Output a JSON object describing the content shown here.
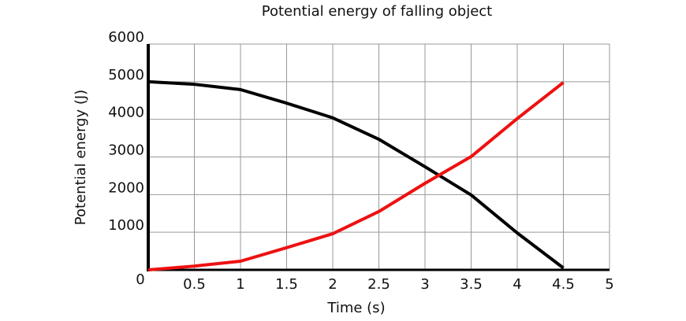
{
  "chart_data": {
    "type": "line",
    "title": "Potential energy of falling object",
    "x_label": "Time (s)",
    "y_label": "Potential energy (J)",
    "x": [
      0,
      0.5,
      1,
      1.5,
      2,
      2.5,
      3,
      3.5,
      4,
      4.5
    ],
    "series": [
      {
        "color": "#000000",
        "values": [
          5000,
          4930,
          4790,
          4430,
          4040,
          3470,
          2740,
          1990,
          980,
          50
        ]
      },
      {
        "color": "#ee1111",
        "values": [
          0,
          100,
          230,
          590,
          960,
          1550,
          2300,
          3010,
          4020,
          4980
        ]
      }
    ],
    "xlim": [
      0,
      5
    ],
    "xticks": [
      0,
      0.5,
      1,
      1.5,
      2,
      2.5,
      3,
      3.5,
      4,
      4.5,
      5
    ],
    "ylim": [
      0,
      6000
    ],
    "yticks": [
      1000,
      2000,
      3000,
      4000,
      5000,
      6000
    ],
    "grid": true
  }
}
